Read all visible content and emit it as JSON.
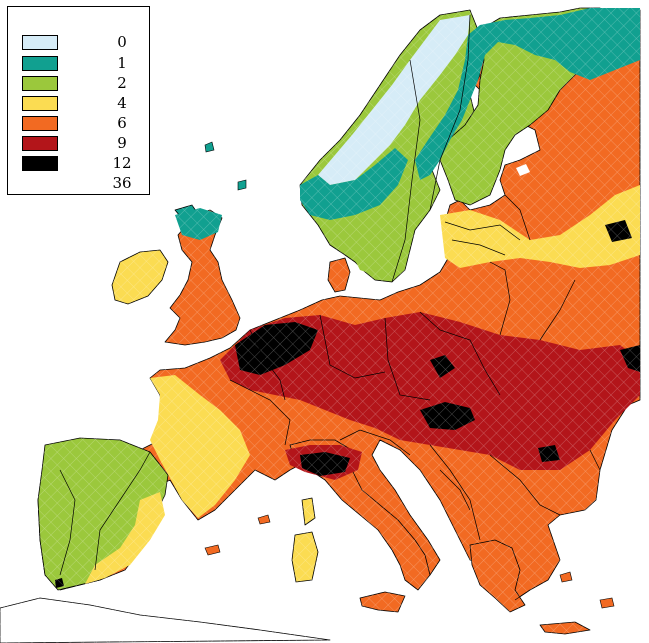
{
  "legend": {
    "items": [
      {
        "label": "0",
        "color": "#d6ecf7"
      },
      {
        "label": "1",
        "color": "#11a090"
      },
      {
        "label": "2",
        "color": "#9bc83c"
      },
      {
        "label": "4",
        "color": "#fbdc52"
      },
      {
        "label": "6",
        "color": "#f26a22"
      },
      {
        "label": "9",
        "color": "#b3151a"
      },
      {
        "label": "12",
        "color": "#000000"
      },
      {
        "label": "36",
        "color": ""
      }
    ]
  },
  "map": {
    "region": "Europe",
    "sea_color": "#ffffff",
    "border_color": "#000000"
  }
}
